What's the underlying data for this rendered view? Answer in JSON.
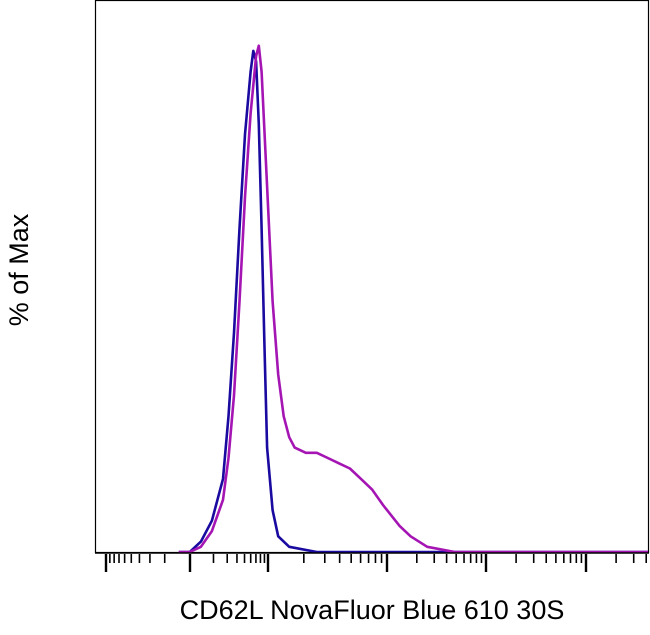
{
  "chart_data": {
    "type": "line",
    "title": "",
    "xlabel": "CD62L NovaFluor Blue 610 30S",
    "ylabel": "% of Max",
    "xscale": "biexponential (tick marks only, no tick labels)",
    "xlim": [
      0,
      1
    ],
    "ylim": [
      0,
      100
    ],
    "grid": false,
    "legend": "none",
    "series": [
      {
        "color": "#1a0aa0",
        "x": [
          0.15,
          0.17,
          0.19,
          0.21,
          0.23,
          0.24,
          0.25,
          0.26,
          0.27,
          0.28,
          0.285,
          0.29,
          0.295,
          0.3,
          0.305,
          0.31,
          0.32,
          0.33,
          0.35,
          0.4,
          0.5,
          0.7,
          1.0
        ],
        "y": [
          0,
          0,
          2,
          6,
          14,
          26,
          42,
          62,
          80,
          92,
          96,
          94,
          82,
          62,
          40,
          20,
          8,
          3,
          1,
          0,
          0,
          0,
          0
        ]
      },
      {
        "color": "#a415b3",
        "x": [
          0.15,
          0.17,
          0.19,
          0.21,
          0.23,
          0.24,
          0.25,
          0.26,
          0.27,
          0.28,
          0.29,
          0.295,
          0.3,
          0.31,
          0.32,
          0.33,
          0.34,
          0.35,
          0.36,
          0.38,
          0.4,
          0.42,
          0.44,
          0.46,
          0.48,
          0.5,
          0.52,
          0.55,
          0.57,
          0.6,
          0.65,
          0.7,
          0.8,
          1.0
        ],
        "y": [
          0,
          0,
          1,
          4,
          10,
          18,
          30,
          48,
          68,
          84,
          95,
          97,
          92,
          70,
          48,
          34,
          26,
          22,
          20,
          19,
          19,
          18,
          17,
          16,
          14,
          12,
          9,
          5,
          3,
          1,
          0,
          0,
          0,
          0
        ]
      }
    ]
  }
}
